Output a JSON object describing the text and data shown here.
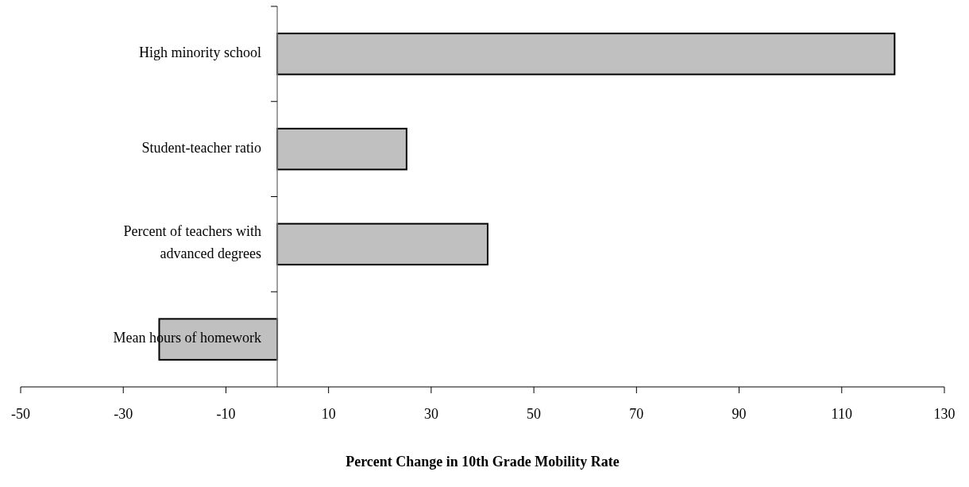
{
  "chart_data": {
    "type": "bar",
    "orientation": "horizontal",
    "xlabel": "Percent Change in 10th Grade Mobility Rate",
    "categories": [
      "High minority school",
      "Student-teacher ratio",
      "Percent of teachers with advanced degrees",
      "Mean hours of homework"
    ],
    "values": [
      120.3,
      25.2,
      41,
      -23
    ],
    "color": "#c0c0c0",
    "xlim": [
      -50,
      130
    ],
    "xticks": [
      -50,
      -30,
      -10,
      10,
      30,
      50,
      70,
      90,
      110,
      130
    ]
  }
}
